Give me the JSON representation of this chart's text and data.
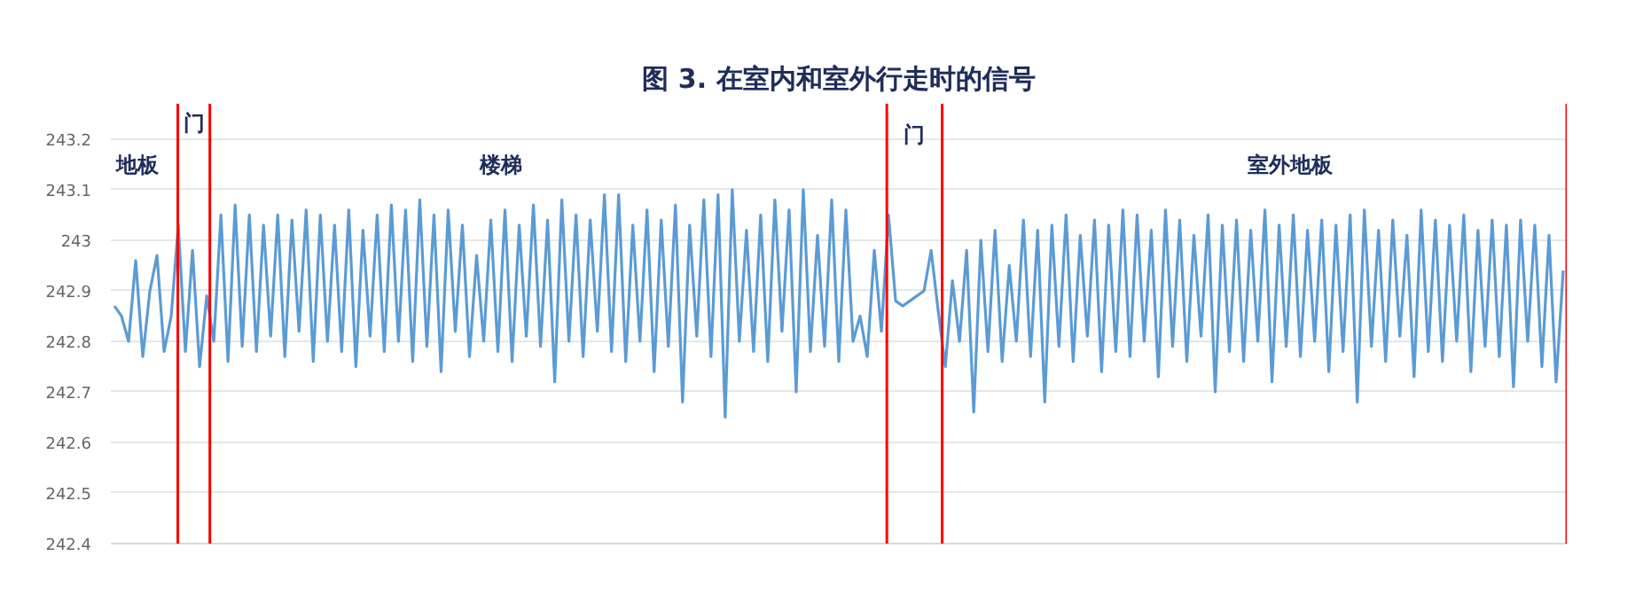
{
  "chart_data": {
    "type": "line",
    "title": "图 3. 在室内和室外行走时的信号",
    "categories": [
      null,
      null,
      null,
      null,
      null,
      null,
      null,
      null,
      null,
      null,
      null,
      null,
      null,
      null,
      null,
      null,
      null,
      null,
      null,
      null,
      null,
      null,
      null,
      null,
      null,
      null,
      null,
      null,
      null,
      null,
      null,
      null,
      null,
      null,
      null,
      null,
      null,
      null,
      null,
      null,
      null,
      null,
      null,
      null,
      null,
      null,
      null,
      null,
      null,
      null,
      null,
      null,
      null,
      null,
      null,
      null,
      null,
      null,
      null,
      null,
      null,
      null,
      null,
      null,
      null,
      null,
      null,
      null,
      null,
      null,
      null,
      null,
      null,
      null,
      null,
      null,
      null,
      null,
      null,
      null,
      null,
      null,
      null,
      null,
      null,
      null,
      null,
      null,
      null,
      null,
      null,
      null,
      null,
      null,
      null,
      null,
      null,
      null,
      null,
      null,
      null,
      null,
      null,
      null,
      null,
      null,
      null,
      null,
      null,
      null,
      null,
      null,
      null,
      null,
      null,
      null,
      null,
      null,
      null,
      null,
      null,
      null,
      null,
      null,
      null,
      null,
      null,
      null,
      null,
      null,
      null,
      null,
      null,
      null,
      null,
      null,
      null,
      null,
      null,
      null,
      null,
      null,
      null,
      null,
      null,
      null,
      null,
      null,
      null,
      null,
      null,
      null,
      null,
      null,
      null,
      null,
      null,
      null,
      null,
      null,
      null,
      null,
      null,
      null,
      null,
      null,
      null,
      null,
      null,
      null,
      null,
      null,
      null,
      null,
      null,
      null,
      null,
      null,
      null,
      null,
      null,
      null,
      null,
      null,
      null,
      null,
      null,
      null,
      null,
      null,
      null,
      null,
      null,
      null,
      null,
      null,
      null,
      null,
      null,
      null,
      null,
      null,
      null,
      null,
      null
    ],
    "series": [
      {
        "color": "#5b9bd5",
        "values": [
          242.87,
          242.85,
          242.8,
          242.96,
          242.77,
          242.9,
          242.97,
          242.78,
          242.85,
          243.03,
          242.78,
          242.98,
          242.75,
          242.89,
          242.8,
          243.05,
          242.76,
          243.07,
          242.79,
          243.05,
          242.78,
          243.03,
          242.81,
          243.05,
          242.77,
          243.04,
          242.82,
          243.06,
          242.76,
          243.05,
          242.8,
          243.03,
          242.78,
          243.06,
          242.75,
          243.02,
          242.81,
          243.05,
          242.78,
          243.07,
          242.8,
          243.06,
          242.76,
          243.08,
          242.79,
          243.05,
          242.74,
          243.06,
          242.82,
          243.03,
          242.77,
          242.97,
          242.8,
          243.04,
          242.78,
          243.06,
          242.76,
          243.03,
          242.81,
          243.07,
          242.79,
          243.04,
          242.72,
          243.08,
          242.8,
          243.05,
          242.77,
          243.04,
          242.82,
          243.09,
          242.78,
          243.09,
          242.76,
          243.03,
          242.8,
          243.06,
          242.74,
          243.04,
          242.79,
          243.07,
          242.68,
          243.03,
          242.81,
          243.08,
          242.77,
          243.09,
          242.65,
          243.1,
          242.8,
          243.02,
          242.78,
          243.05,
          242.76,
          243.08,
          242.82,
          243.06,
          242.7,
          243.1,
          242.78,
          243.01,
          242.79,
          243.08,
          242.76,
          243.06,
          242.8,
          242.85,
          242.77,
          242.98,
          242.82,
          243.05,
          242.88,
          242.87,
          242.88,
          242.89,
          242.9,
          242.98,
          242.86,
          242.75,
          242.92,
          242.8,
          242.98,
          242.66,
          243.0,
          242.78,
          243.02,
          242.76,
          242.95,
          242.8,
          243.04,
          242.77,
          243.02,
          242.68,
          243.03,
          242.79,
          243.05,
          242.76,
          243.01,
          242.81,
          243.04,
          242.74,
          243.03,
          242.78,
          243.06,
          242.77,
          243.05,
          242.8,
          243.02,
          242.73,
          243.06,
          242.79,
          243.04,
          242.76,
          243.01,
          242.81,
          243.05,
          242.7,
          243.03,
          242.78,
          243.04,
          242.76,
          243.02,
          242.8,
          243.06,
          242.72,
          243.03,
          242.79,
          243.05,
          242.77,
          243.02,
          242.8,
          243.04,
          242.74,
          243.03,
          242.78,
          243.05,
          242.68,
          243.06,
          242.79,
          243.02,
          242.76,
          243.04,
          242.81,
          243.01,
          242.73,
          243.06,
          242.78,
          243.04,
          242.76,
          243.03,
          242.8,
          243.05,
          242.74,
          243.02,
          242.79,
          243.04,
          242.77,
          243.03,
          242.71,
          243.04,
          242.8,
          243.03,
          242.75,
          243.01,
          242.72,
          242.94
        ]
      }
    ],
    "ylim": [
      242.4,
      243.27
    ],
    "yticks": [
      242.4,
      242.5,
      242.6,
      242.7,
      242.8,
      242.9,
      {
        "value": 243.0,
        "label": "243"
      },
      243.1,
      243.2
    ],
    "tick_labels": "y",
    "grid": "y",
    "marker": "none",
    "line_style": "solid",
    "annotations": [
      "地板",
      "门",
      "楼梯",
      "门",
      "室外地板"
    ]
  }
}
